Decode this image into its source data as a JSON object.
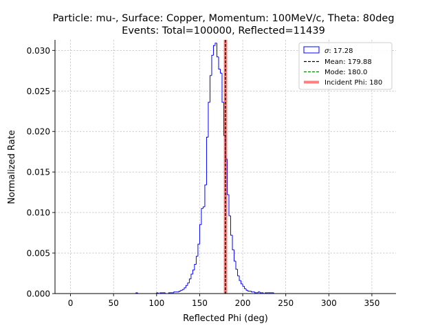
{
  "chart_data": {
    "type": "histogram",
    "title_line1": "Particle: mu-, Surface: Copper, Momentum: 100MeV/c, Theta: 80deg",
    "title_line2": "Events: Total=100000, Reflected=11439",
    "xlabel": "Reflected Phi (deg)",
    "ylabel": "Normalized Rate",
    "xlim": [
      -18,
      378
    ],
    "ylim": [
      0,
      0.0313
    ],
    "xticks": [
      "0",
      "50",
      "100",
      "150",
      "200",
      "250",
      "300",
      "350"
    ],
    "yticks": [
      "0.000",
      "0.005",
      "0.010",
      "0.015",
      "0.020",
      "0.025",
      "0.030"
    ],
    "grid": true,
    "legend_position": "top-right",
    "bin_width": 2,
    "bin_start": 0,
    "values": [
      0,
      0,
      0,
      0,
      0,
      0,
      0,
      0,
      0,
      0,
      0,
      0,
      0,
      0,
      0,
      0,
      0,
      0,
      0,
      0,
      0,
      0,
      0,
      0,
      0,
      0,
      0,
      0,
      0,
      0,
      0,
      0,
      0,
      0,
      0,
      0,
      0,
      0,
      0.0001,
      0,
      0,
      0,
      0,
      0,
      0,
      0,
      0,
      0,
      0,
      0,
      0.0001,
      0,
      0.0001,
      0.0001,
      0.0001,
      0,
      0,
      0.0001,
      0.0001,
      0.0001,
      0.0002,
      0.0002,
      0.0002,
      0.0003,
      0.0004,
      0.0005,
      0.0007,
      0.001,
      0.0013,
      0.0018,
      0.0024,
      0.0029,
      0.0036,
      0.0046,
      0.0061,
      0.0085,
      0.0105,
      0.0107,
      0.0134,
      0.0193,
      0.0236,
      0.0269,
      0.0294,
      0.0306,
      0.0309,
      0.0292,
      0.0277,
      0.0272,
      0.0236,
      0.0195,
      0.0166,
      0.0122,
      0.0096,
      0.0072,
      0.0054,
      0.004,
      0.003,
      0.0022,
      0.0016,
      0.0012,
      0.0009,
      0.0006,
      0.0004,
      0.0003,
      0.0003,
      0.0002,
      0.0002,
      0.0001,
      0.0001,
      0.0002,
      0.0001,
      0.0001,
      0,
      0.0001,
      0.0001,
      0.0001,
      0.0001,
      0.0001,
      0,
      0,
      0,
      0,
      0,
      0,
      0,
      0,
      0,
      0,
      0,
      0,
      0,
      0,
      0,
      0,
      0,
      0,
      0,
      0,
      0,
      0,
      0,
      0,
      0,
      0,
      0,
      0,
      0,
      0,
      0,
      0,
      0,
      0,
      0,
      0,
      0,
      0,
      0,
      0,
      0,
      0,
      0,
      0,
      0,
      0,
      0,
      0,
      0,
      0,
      0,
      0,
      0,
      0,
      0,
      0,
      0,
      0,
      0,
      0,
      0,
      0,
      0,
      0,
      0,
      0,
      0
    ],
    "sigma": 17.28,
    "mean": 179.88,
    "mode": 180.0,
    "incident_phi": 180,
    "series": [
      {
        "name": "$\\sigma$: 17.28",
        "label_sigma_symbol": "σ",
        "label_rest": ": 17.28",
        "color": "#0000ff"
      },
      {
        "name": "Mean: 179.88",
        "color": "#000000"
      },
      {
        "name": "Mode: 180.0",
        "color": "#008000"
      },
      {
        "name": "Incident Phi: 180",
        "color": "#ff0000"
      }
    ]
  }
}
